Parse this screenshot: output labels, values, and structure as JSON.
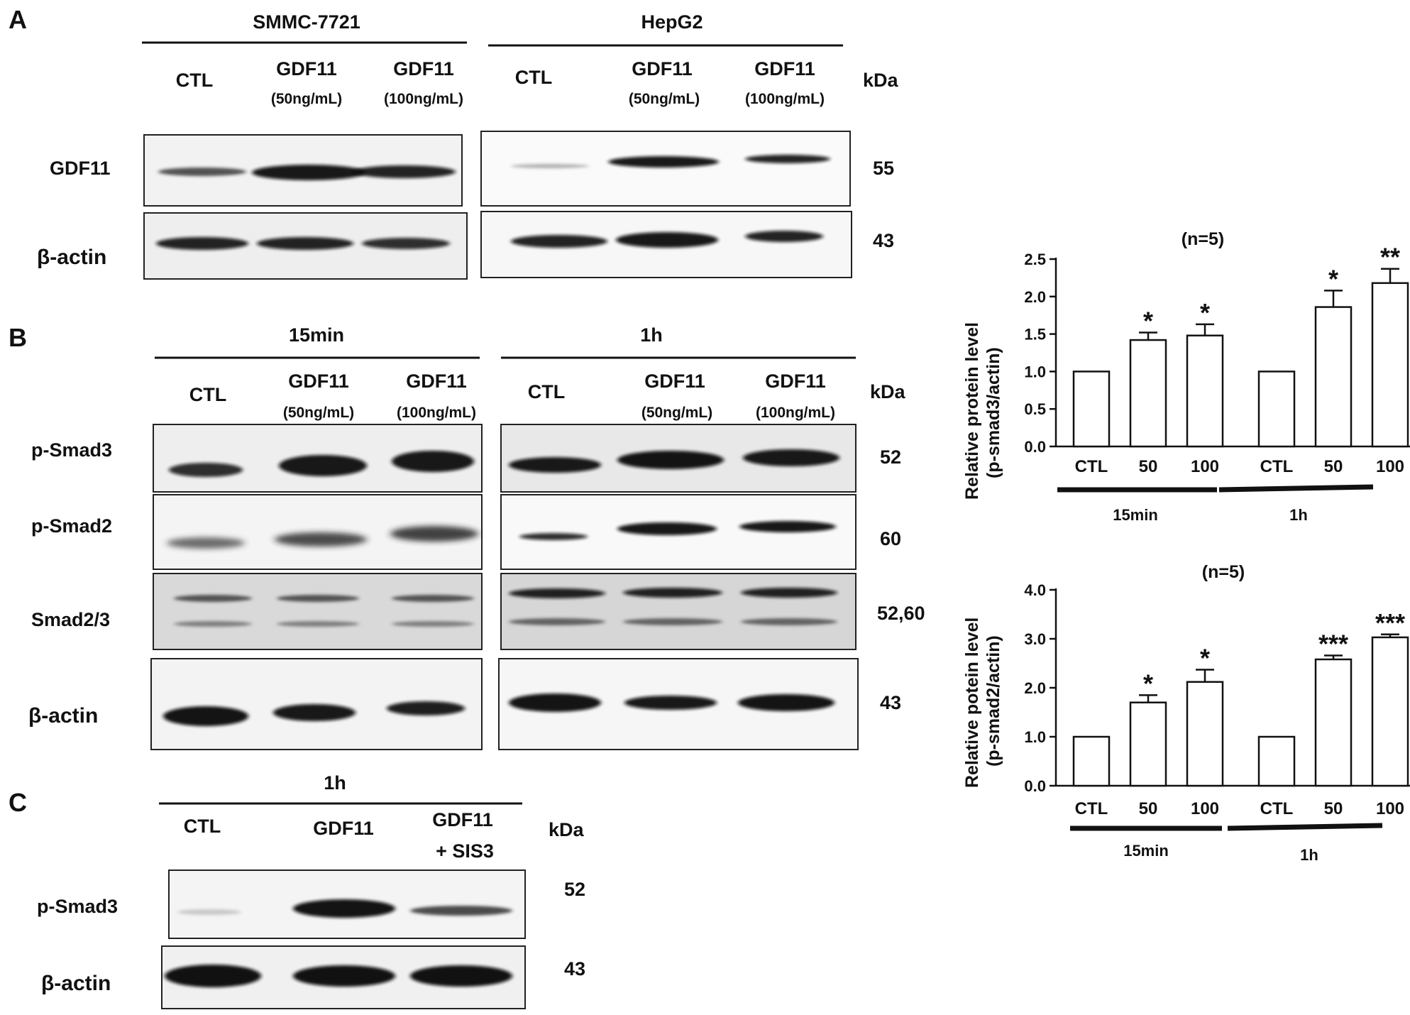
{
  "panel_a": {
    "letter": "A",
    "left_cell_line": "SMMC-7721",
    "right_cell_line": "HepG2",
    "lane_labels": [
      "CTL",
      "GDF11",
      "GDF11"
    ],
    "lane_doses": [
      "",
      "(50ng/mL)",
      "(100ng/mL)"
    ],
    "kda_header": "kDa",
    "rows": [
      {
        "name": "GDF11",
        "kda": "55"
      },
      {
        "name": "β-actin",
        "kda": "43"
      }
    ],
    "bands": {
      "left": [
        [
          0.45,
          1.0,
          0.85
        ],
        [
          0.85,
          0.85,
          0.8
        ]
      ],
      "right": [
        [
          0.2,
          0.95,
          0.8
        ],
        [
          0.85,
          0.9,
          0.8
        ]
      ]
    }
  },
  "panel_b": {
    "letter": "B",
    "left_time": "15min",
    "right_time": "1h",
    "lane_labels": [
      "CTL",
      "GDF11",
      "GDF11"
    ],
    "lane_doses": [
      "",
      "(50ng/mL)",
      "(100ng/mL)"
    ],
    "kda_header": "kDa",
    "rows": [
      {
        "name": "p-Smad3",
        "kda": "52"
      },
      {
        "name": "p-Smad2",
        "kda": "60"
      },
      {
        "name": "Smad2/3",
        "kda": "52,60"
      },
      {
        "name": "β-actin",
        "kda": "43"
      }
    ]
  },
  "panel_c": {
    "letter": "C",
    "time": "1h",
    "lane_labels": [
      "CTL",
      "GDF11",
      "GDF11"
    ],
    "lane_extra": [
      "",
      "",
      "+ SIS3"
    ],
    "kda_header": "kDa",
    "rows": [
      {
        "name": "p-Smad3",
        "kda": "52"
      },
      {
        "name": "β-actin",
        "kda": "43"
      }
    ],
    "bands": [
      [
        0.1,
        1.0,
        0.6
      ],
      [
        1.0,
        1.0,
        1.0
      ]
    ]
  },
  "chart_data": [
    {
      "type": "bar",
      "title": "(n=5)",
      "ylabel": "Relative protein level (p-smad3/actin)",
      "ylabel_lines": [
        "Relative protein level",
        "(p-smad3/actin)"
      ],
      "categories": [
        "CTL",
        "50",
        "100",
        "CTL",
        "50",
        "100"
      ],
      "groups": [
        "15min",
        "1h"
      ],
      "values": [
        1.0,
        1.42,
        1.48,
        1.0,
        1.86,
        2.18
      ],
      "errors": [
        0,
        0.1,
        0.15,
        0,
        0.22,
        0.19
      ],
      "significance": [
        "",
        "*",
        "*",
        "",
        "*",
        "**"
      ],
      "yticks": [
        "0.0",
        "0.5",
        "1.0",
        "1.5",
        "2.0",
        "2.5"
      ],
      "ylim": [
        0,
        2.5
      ]
    },
    {
      "type": "bar",
      "title": "(n=5)",
      "ylabel": "Relative potein level (p-smad2/actin)",
      "ylabel_lines": [
        "Relative potein level",
        "(p-smad2/actin)"
      ],
      "categories": [
        "CTL",
        "50",
        "100",
        "CTL",
        "50",
        "100"
      ],
      "groups": [
        "15min",
        "1h"
      ],
      "values": [
        1.0,
        1.7,
        2.12,
        1.0,
        2.58,
        3.03
      ],
      "errors": [
        0,
        0.15,
        0.25,
        0,
        0.08,
        0.06
      ],
      "significance": [
        "",
        "*",
        "*",
        "",
        "***",
        "***"
      ],
      "yticks": [
        "0.0",
        "1.0",
        "2.0",
        "3.0",
        "4.0"
      ],
      "ylim": [
        0,
        4
      ]
    }
  ]
}
